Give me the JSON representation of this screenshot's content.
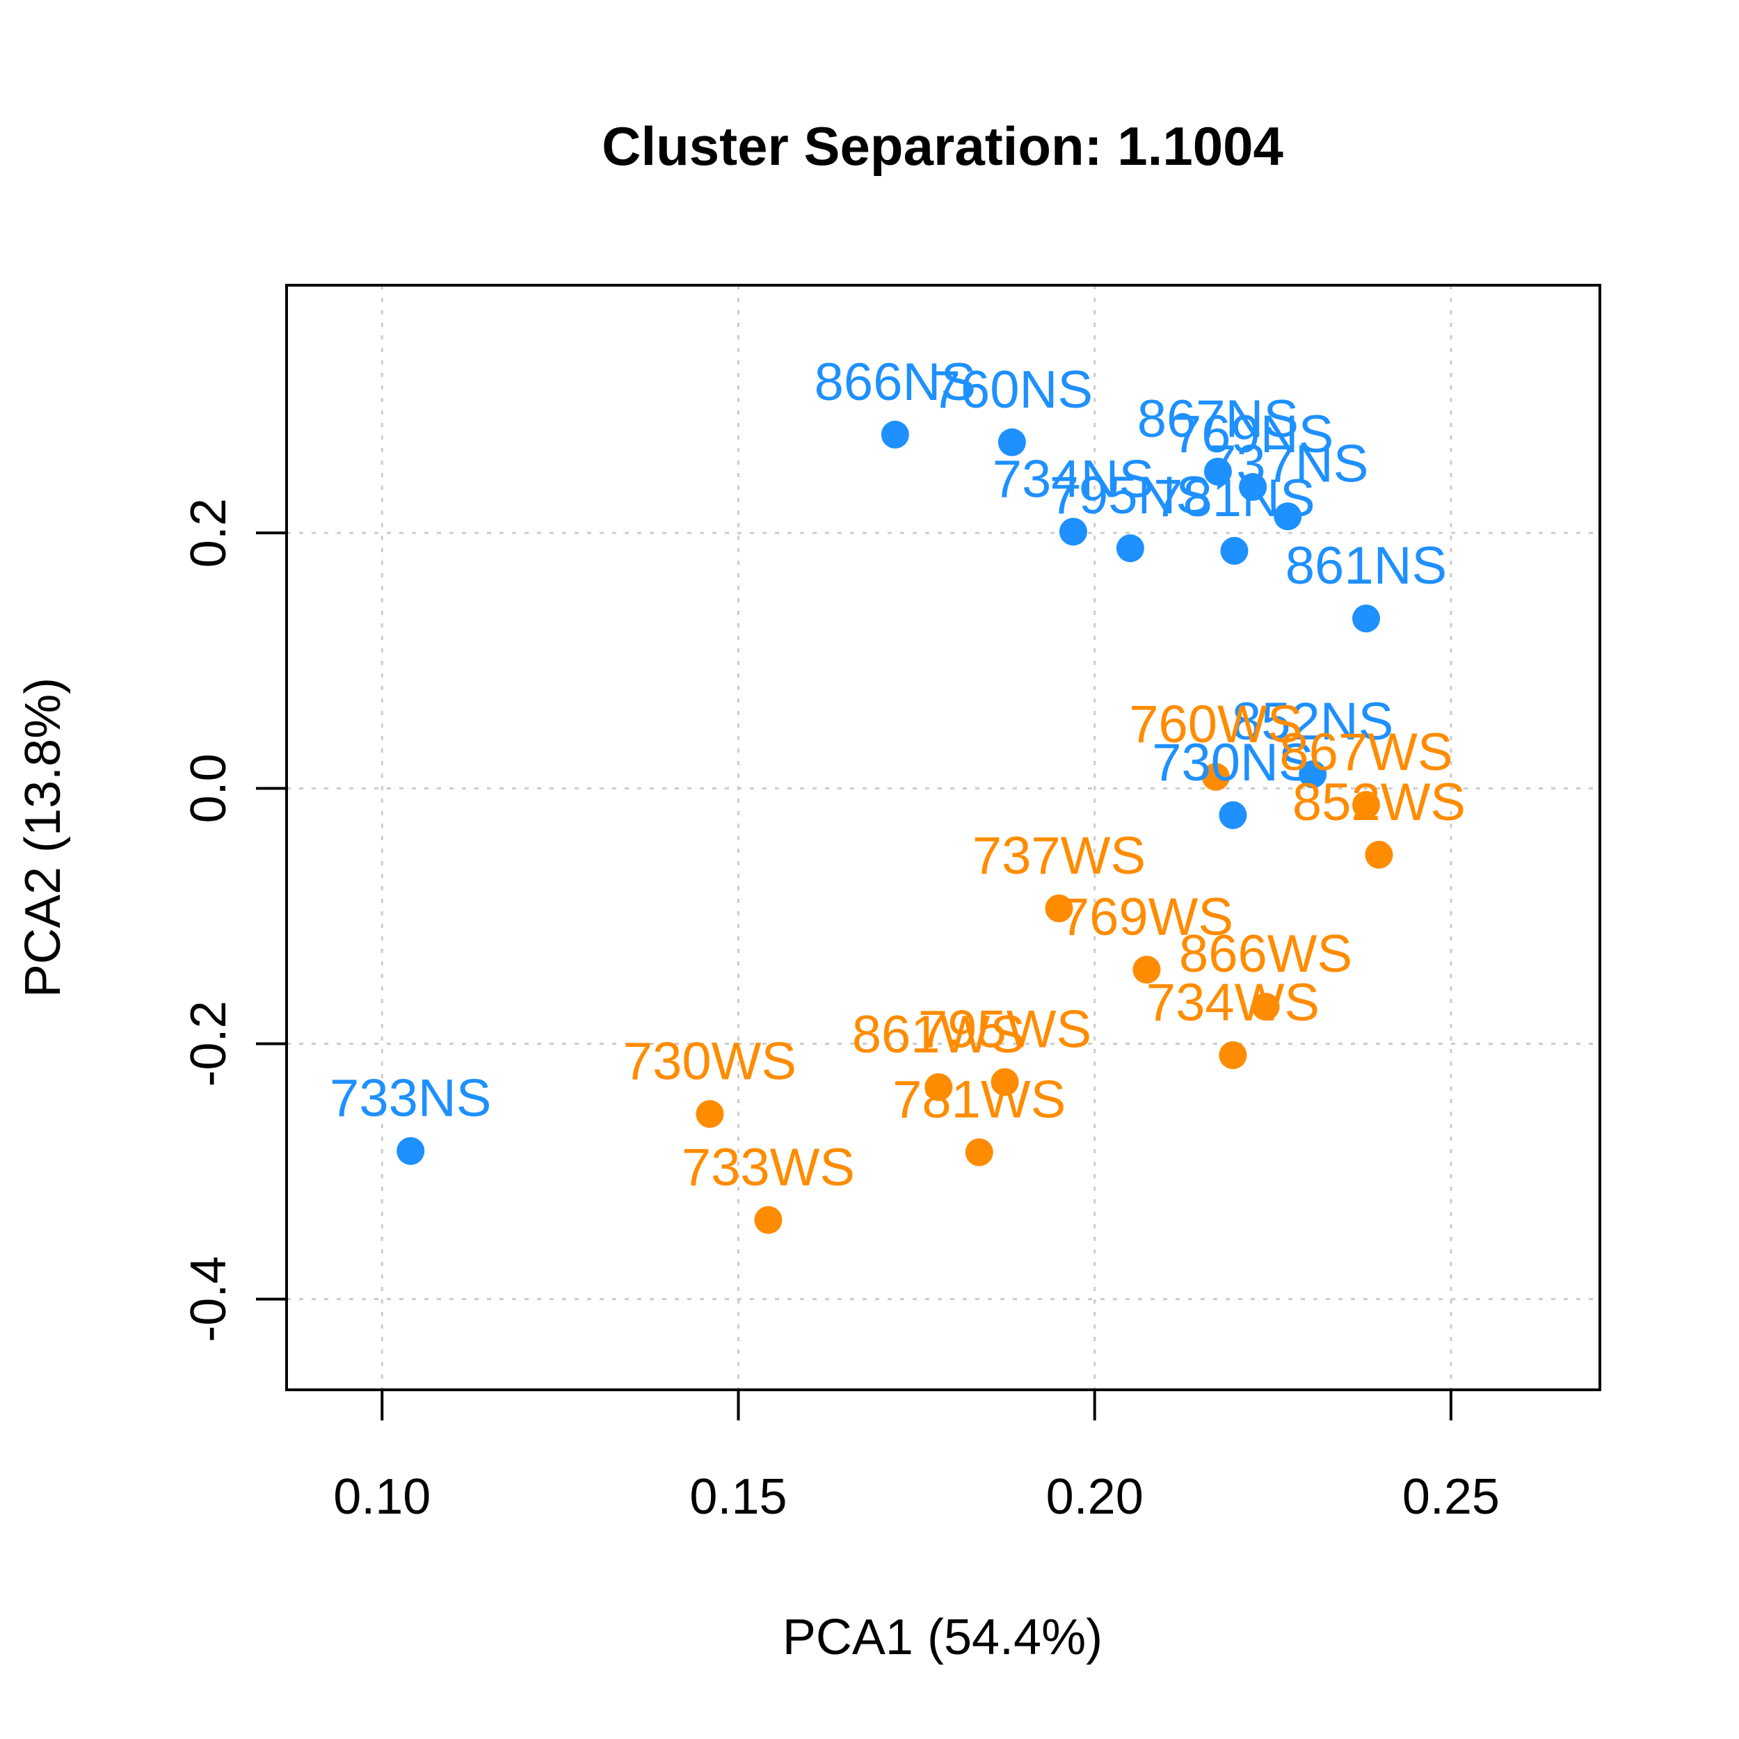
{
  "chart_data": {
    "type": "scatter",
    "title": "Cluster Separation: 1.1004",
    "xlabel": "PCA1 (54.4%)",
    "ylabel": "PCA2 (13.8%)",
    "xlim": [
      0.0866,
      0.2709
    ],
    "ylim": [
      -0.471,
      0.394
    ],
    "xticks": [
      0.1,
      0.15,
      0.2,
      0.25
    ],
    "yticks": [
      -0.4,
      -0.2,
      0.0,
      0.2
    ],
    "xtick_labels": [
      "0.10",
      "0.15",
      "0.20",
      "0.25"
    ],
    "ytick_labels": [
      "-0.4",
      "-0.2",
      "0.0",
      "0.2"
    ],
    "grid": true,
    "colors": {
      "NS": "#1E90FF",
      "WS": "#FF8C00"
    },
    "series": [
      {
        "group": "NS",
        "color": "#1E90FF",
        "points": [
          {
            "label": "866NS",
            "x": 0.172,
            "y": 0.277
          },
          {
            "label": "760NS",
            "x": 0.1884,
            "y": 0.271
          },
          {
            "label": "867NS",
            "x": 0.2173,
            "y": 0.248
          },
          {
            "label": "769NS",
            "x": 0.2222,
            "y": 0.236
          },
          {
            "label": "737NS",
            "x": 0.2271,
            "y": 0.213
          },
          {
            "label": "734NS",
            "x": 0.197,
            "y": 0.201
          },
          {
            "label": "795NS",
            "x": 0.205,
            "y": 0.188
          },
          {
            "label": "781NS",
            "x": 0.2196,
            "y": 0.186
          },
          {
            "label": "861NS",
            "x": 0.2381,
            "y": 0.133
          },
          {
            "label": "852NS",
            "x": 0.2306,
            "y": 0.011
          },
          {
            "label": "730NS",
            "x": 0.2194,
            "y": -0.021
          },
          {
            "label": "733NS",
            "x": 0.104,
            "y": -0.284
          }
        ]
      },
      {
        "group": "WS",
        "color": "#FF8C00",
        "points": [
          {
            "label": "760WS",
            "x": 0.217,
            "y": 0.009
          },
          {
            "label": "867WS",
            "x": 0.2381,
            "y": -0.013
          },
          {
            "label": "852WS",
            "x": 0.2399,
            "y": -0.052
          },
          {
            "label": "737WS",
            "x": 0.195,
            "y": -0.094
          },
          {
            "label": "769WS",
            "x": 0.2073,
            "y": -0.142
          },
          {
            "label": "866WS",
            "x": 0.224,
            "y": -0.171
          },
          {
            "label": "734WS",
            "x": 0.2194,
            "y": -0.209
          },
          {
            "label": "861WS",
            "x": 0.1781,
            "y": -0.234
          },
          {
            "label": "795WS",
            "x": 0.1874,
            "y": -0.23
          },
          {
            "label": "730WS",
            "x": 0.146,
            "y": -0.255
          },
          {
            "label": "781WS",
            "x": 0.1838,
            "y": -0.285
          },
          {
            "label": "733WS",
            "x": 0.1542,
            "y": -0.338
          }
        ]
      }
    ]
  }
}
